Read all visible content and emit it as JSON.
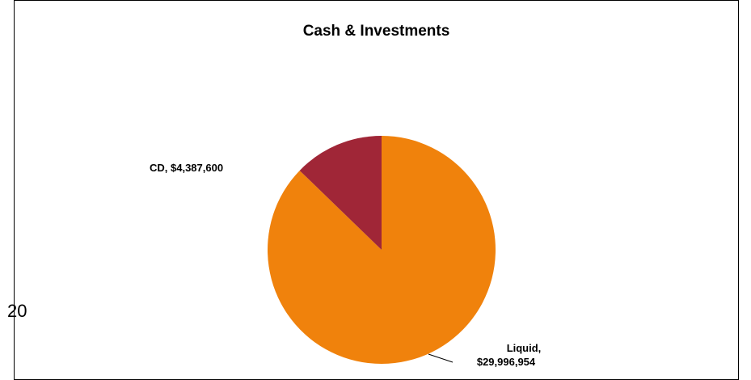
{
  "page_number": "20",
  "chart_data": {
    "type": "pie",
    "title": "Cash & Investments",
    "slices": [
      {
        "name": "Liquid",
        "value": 29996954,
        "label_line1": "Liquid,",
        "label_line2": "$29,996,954",
        "color": "#F0820C"
      },
      {
        "name": "CD",
        "value": 4387600,
        "label_line1": "CD,  $4,387,600",
        "color": "#A02637"
      }
    ],
    "legend": "none",
    "start_angle": "12 o'clock",
    "direction": "clockwise"
  }
}
